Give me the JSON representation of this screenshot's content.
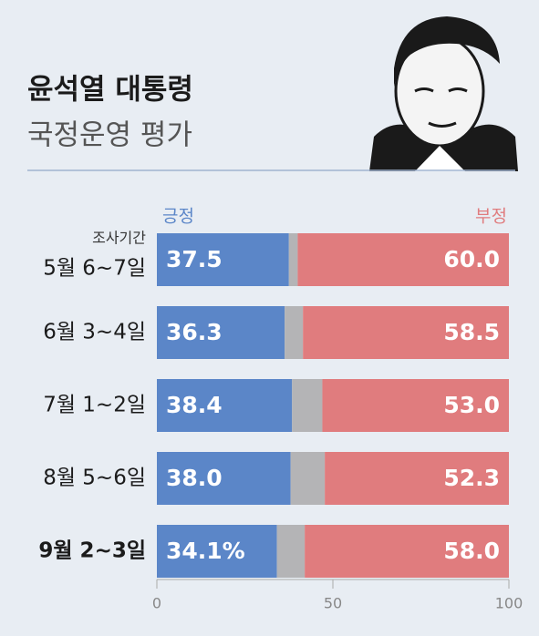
{
  "chart_data": {
    "type": "stacked-barh",
    "title": "윤석열 대통령",
    "subtitle": "국정운영 평가",
    "category_header": "조사기간",
    "categories": [
      "5월 6~7일",
      "6월 3~4일",
      "7월 1~2일",
      "8월 5~6일",
      "9월 2~3일"
    ],
    "bold_category": 4,
    "series": [
      {
        "name": "긍정",
        "color": "#5b86c8",
        "values": [
          37.5,
          36.3,
          38.4,
          38.0,
          34.1
        ],
        "value_labels": [
          "37.5",
          "36.3",
          "38.4",
          "38.0",
          "34.1%"
        ]
      },
      {
        "color": "#b4b4b6",
        "values": [
          2.5,
          5.2,
          8.6,
          9.7,
          7.9
        ]
      },
      {
        "name": "부정",
        "color": "#e07c7e",
        "values": [
          60.0,
          58.5,
          53.0,
          52.3,
          58.0
        ],
        "value_labels": [
          "60.0",
          "58.5",
          "53.0",
          "52.3",
          "58.0"
        ]
      }
    ],
    "xlim": [
      0,
      100
    ],
    "xticks": [
      0,
      50,
      100
    ]
  }
}
